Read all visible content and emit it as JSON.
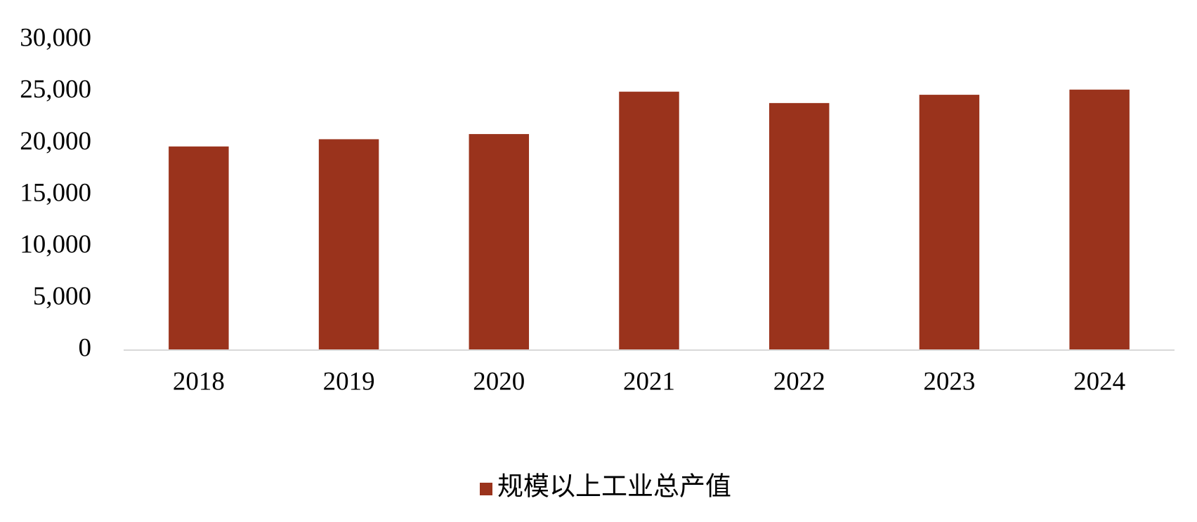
{
  "chart_data": {
    "type": "bar",
    "categories": [
      "2018",
      "2019",
      "2020",
      "2021",
      "2022",
      "2023",
      "2024"
    ],
    "series": [
      {
        "name": "规模以上工业总产值",
        "color": "#9a331c",
        "values": [
          19700,
          20400,
          20900,
          25000,
          23900,
          24700,
          25200
        ]
      }
    ],
    "ylim": [
      0,
      30000
    ],
    "yticks": [
      0,
      {
        "value": 5000,
        "label": "5,000"
      },
      {
        "value": 10000,
        "label": "10,000"
      },
      {
        "value": 15000,
        "label": "15,000"
      },
      {
        "value": 20000,
        "label": "20,000"
      },
      {
        "value": 25000,
        "label": "25,000"
      },
      {
        "value": 30000,
        "label": "30,000"
      }
    ],
    "grid": false,
    "legend": "bottom"
  }
}
